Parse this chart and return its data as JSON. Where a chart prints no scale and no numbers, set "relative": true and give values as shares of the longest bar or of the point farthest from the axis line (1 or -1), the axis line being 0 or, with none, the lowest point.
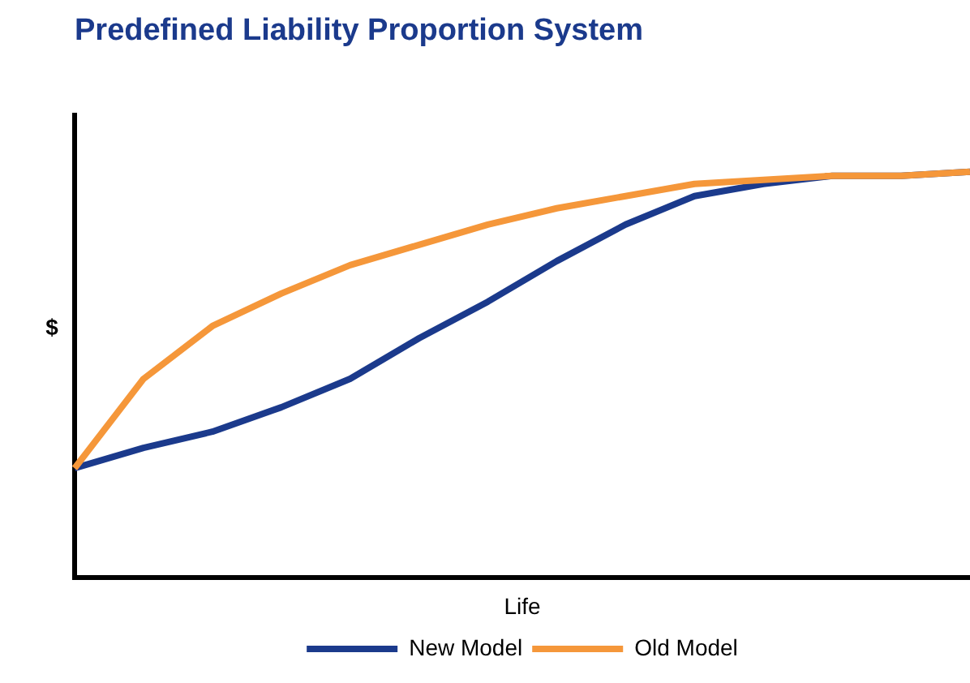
{
  "chart_data": {
    "type": "line",
    "title": "Predefined Liability Proportion System",
    "xlabel": "Life",
    "ylabel": "$",
    "relative": true,
    "legend": "bottom",
    "grid": false,
    "marker": "none",
    "categories": [
      null,
      null,
      null,
      null,
      null,
      null,
      null,
      null,
      null,
      null,
      null,
      null,
      null,
      null
    ],
    "series": [
      {
        "name": "New Model",
        "color": "#1b3a8c",
        "values": [
          0.27,
          0.32,
          0.36,
          0.42,
          0.49,
          0.59,
          0.68,
          0.78,
          0.87,
          0.94,
          0.97,
          0.99,
          0.99,
          1
        ]
      },
      {
        "name": "Old Model",
        "color": "#f5973a",
        "values": [
          0.27,
          0.49,
          0.62,
          0.7,
          0.77,
          0.82,
          0.87,
          0.91,
          0.94,
          0.97,
          0.98,
          0.99,
          0.99,
          1
        ]
      }
    ]
  }
}
